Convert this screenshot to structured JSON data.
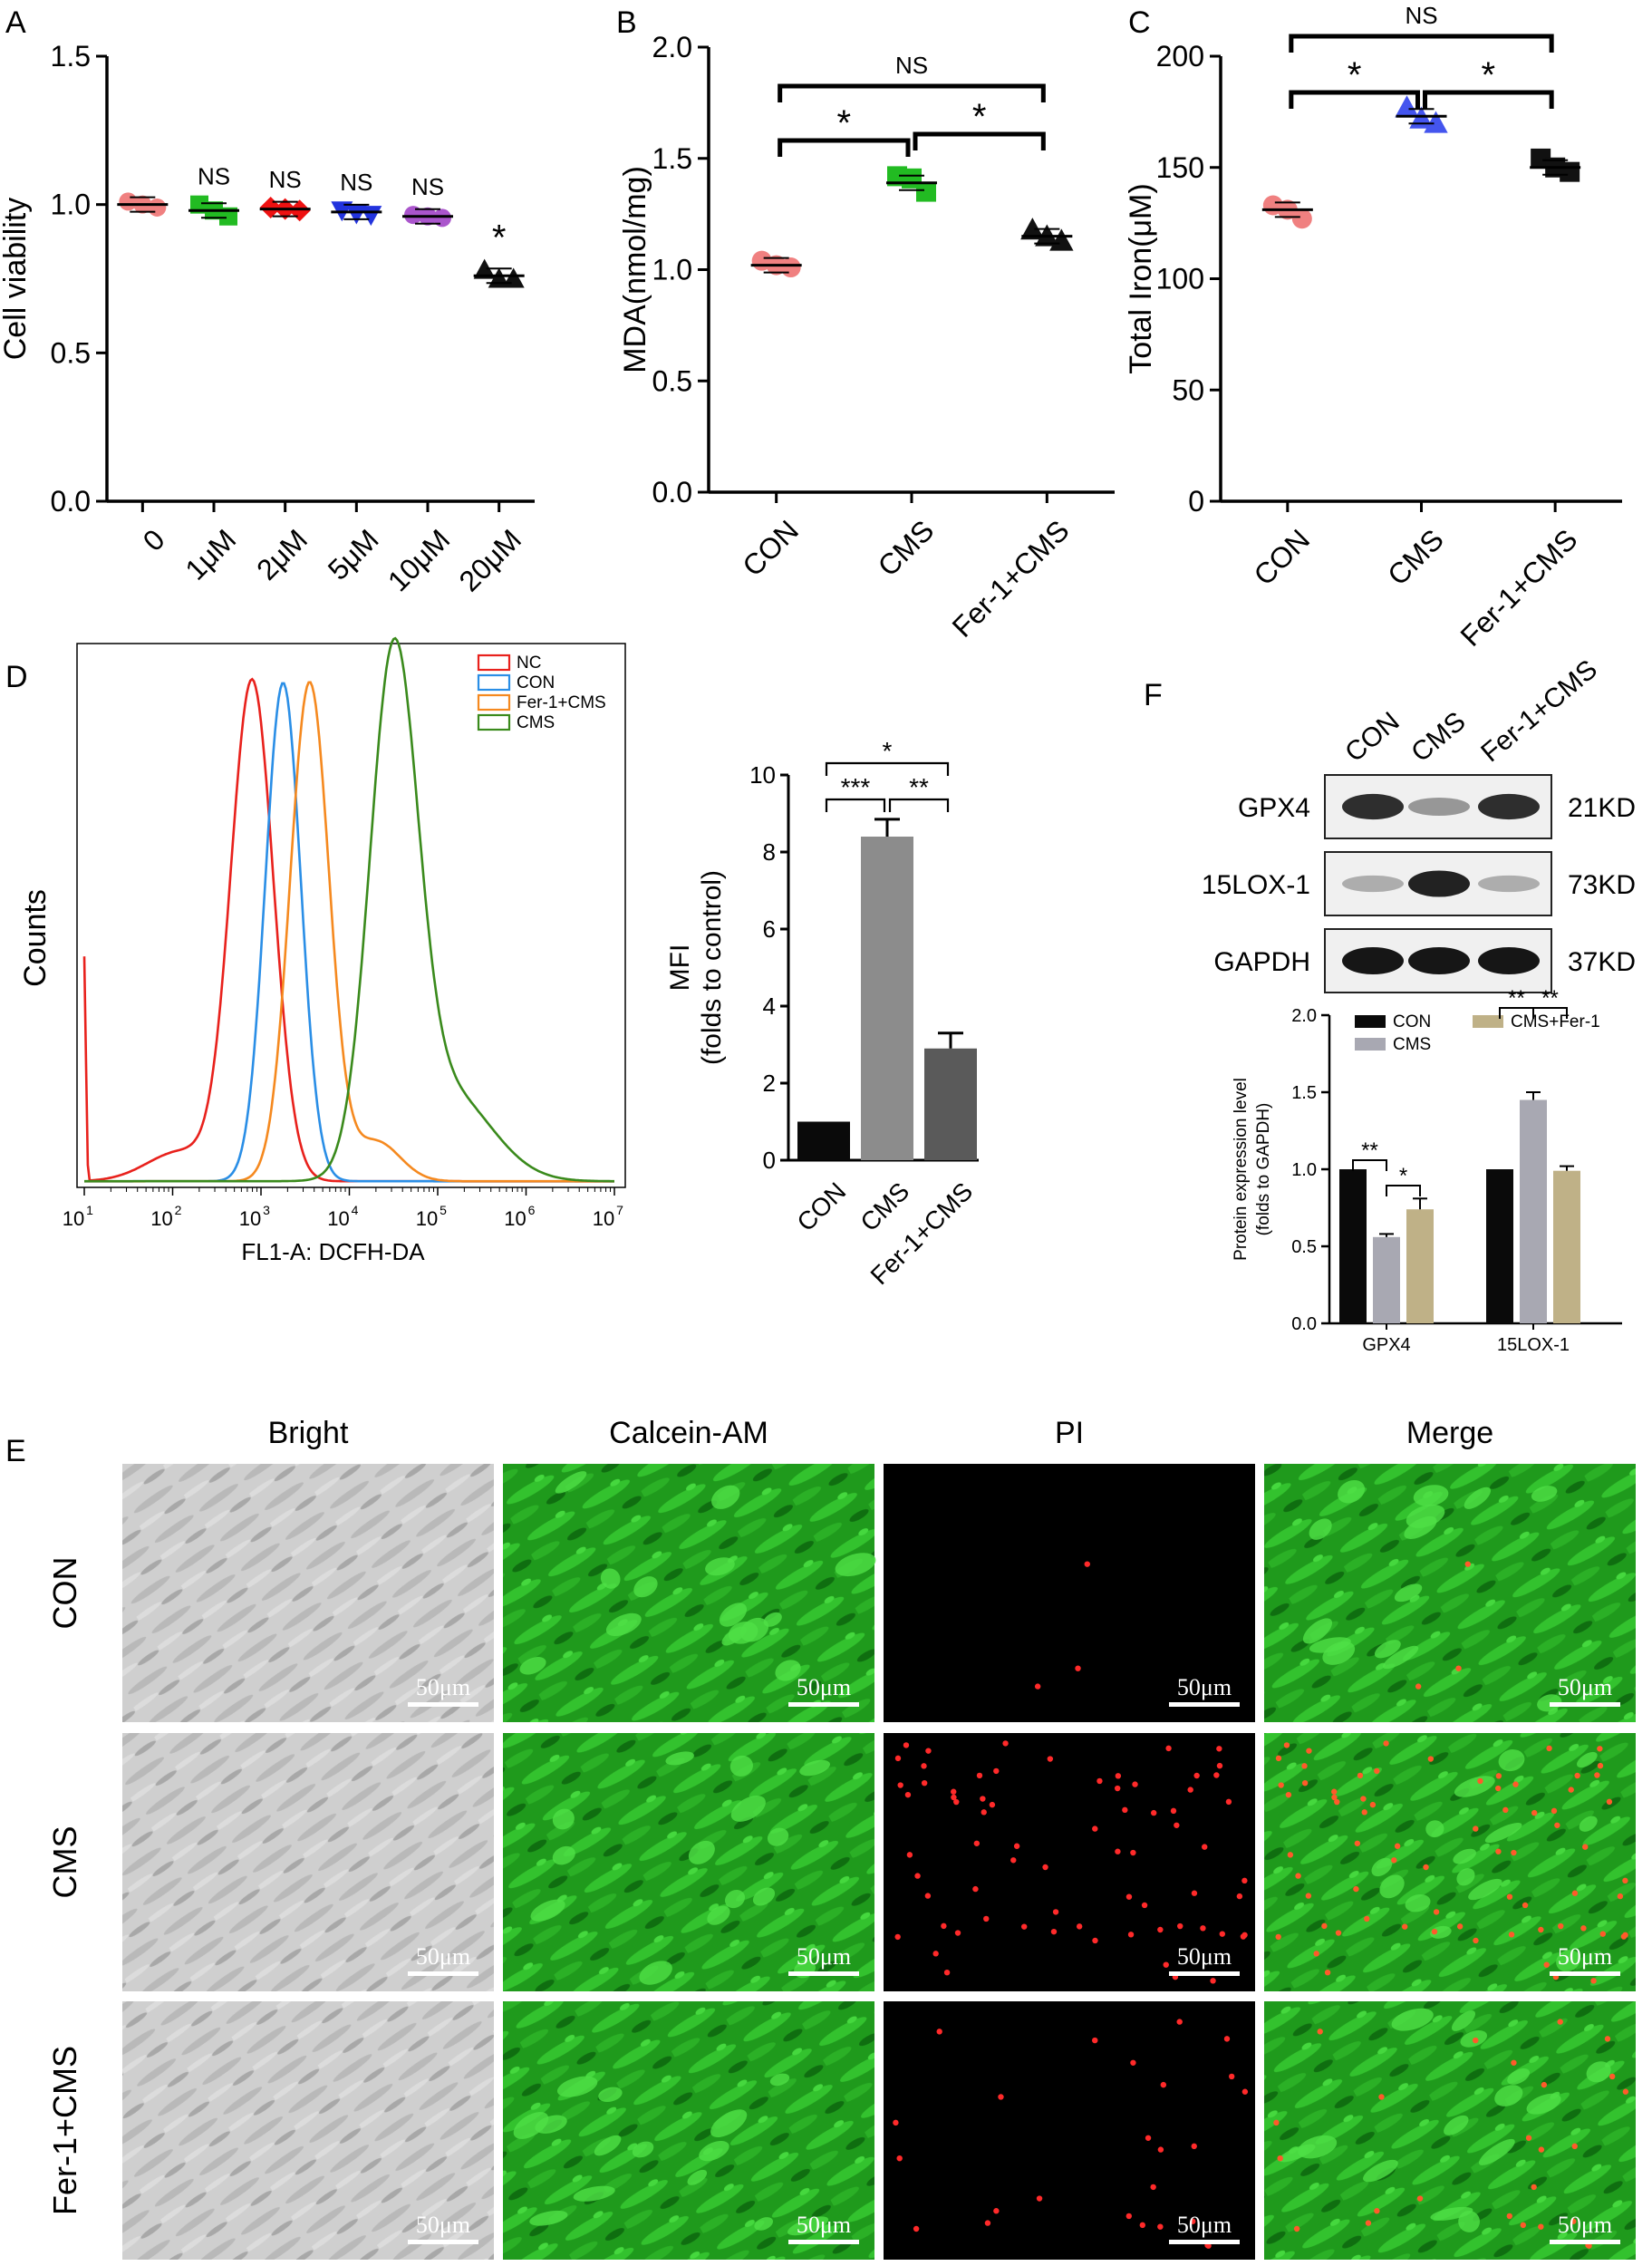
{
  "panel_letters": {
    "a": "A",
    "b": "B",
    "c": "C",
    "d": "D",
    "e": "E",
    "f": "F"
  },
  "chart_data": [
    {
      "panel": "A",
      "type": "scatter",
      "ylabel": "Cell viability",
      "ylim": [
        0,
        1.5
      ],
      "yticks": [
        "0.0",
        "0.5",
        "1.0",
        "1.5"
      ],
      "categories": [
        "0",
        "1μM",
        "2μM",
        "5μM",
        "10μM",
        "20μM"
      ],
      "means": [
        1.0,
        0.98,
        0.985,
        0.975,
        0.96,
        0.76
      ],
      "points": [
        [
          1.01,
          1.0,
          0.99
        ],
        [
          1.0,
          0.98,
          0.96
        ],
        [
          0.99,
          0.985,
          0.98
        ],
        [
          0.98,
          0.97,
          0.965
        ],
        [
          0.965,
          0.96,
          0.955
        ],
        [
          0.78,
          0.75,
          0.75
        ]
      ],
      "colors": [
        "#f08080",
        "#22bb22",
        "#ee1111",
        "#2233dd",
        "#aa55cc",
        "#111111"
      ],
      "markers": [
        "circle",
        "square",
        "diamond",
        "triangle-down",
        "circle",
        "triangle"
      ],
      "annotations": [
        "",
        "NS",
        "NS",
        "NS",
        "NS",
        "*"
      ]
    },
    {
      "panel": "B",
      "type": "scatter",
      "ylabel": "MDA(nmol/mg)",
      "ylim": [
        0,
        2.0
      ],
      "yticks": [
        "0.0",
        "0.5",
        "1.0",
        "1.5",
        "2.0"
      ],
      "categories": [
        "CON",
        "CMS",
        "Fer-1+CMS"
      ],
      "means": [
        1.02,
        1.39,
        1.15
      ],
      "points": [
        [
          1.04,
          1.02,
          1.01
        ],
        [
          1.42,
          1.41,
          1.35
        ],
        [
          1.18,
          1.15,
          1.13
        ]
      ],
      "colors": [
        "#f08080",
        "#22bb22",
        "#111111"
      ],
      "markers": [
        "circle",
        "square",
        "triangle"
      ],
      "significance": [
        {
          "from": 0,
          "to": 1,
          "label": "*"
        },
        {
          "from": 1,
          "to": 2,
          "label": "*"
        },
        {
          "from": 0,
          "to": 2,
          "label": "NS"
        }
      ]
    },
    {
      "panel": "C",
      "type": "scatter",
      "ylabel": "Total Iron(μM)",
      "ylim": [
        0,
        200
      ],
      "yticks": [
        "0",
        "50",
        "100",
        "150",
        "200"
      ],
      "categories": [
        "CON",
        "CMS",
        "Fer-1+CMS"
      ],
      "means": [
        131,
        173,
        150
      ],
      "points": [
        [
          133,
          131,
          127
        ],
        [
          177,
          172,
          170
        ],
        [
          154,
          150,
          148
        ]
      ],
      "colors": [
        "#f08080",
        "#4455ee",
        "#111111"
      ],
      "markers": [
        "circle",
        "triangle",
        "square"
      ],
      "significance": [
        {
          "from": 0,
          "to": 1,
          "label": "*"
        },
        {
          "from": 1,
          "to": 2,
          "label": "*"
        },
        {
          "from": 0,
          "to": 2,
          "label": "NS"
        }
      ]
    },
    {
      "panel": "D-histogram",
      "type": "line",
      "xlabel": "FL1-A: DCFH-DA",
      "ylabel": "Counts",
      "xscale": "log",
      "xticks": [
        "10",
        "10",
        "10",
        "10",
        "10",
        "10",
        "10"
      ],
      "xtick_exponents": [
        "1",
        "2",
        "3",
        "4",
        "5",
        "6",
        "7"
      ],
      "legend_position": "top-right",
      "series": [
        {
          "name": "NC",
          "color": "#e8211c",
          "peak_log10": 2.9,
          "width": 0.24
        },
        {
          "name": "CON",
          "color": "#2a8ee6",
          "peak_log10": 3.25,
          "width": 0.2
        },
        {
          "name": "Fer-1+CMS",
          "color": "#f5891f",
          "peak_log10": 3.55,
          "width": 0.22
        },
        {
          "name": "CMS",
          "color": "#3a8a1c",
          "peak_log10": 4.5,
          "width": 0.27
        }
      ]
    },
    {
      "panel": "D-bar",
      "type": "bar",
      "ylabel": "MFI",
      "ylabel2": "(folds to control)",
      "ylim": [
        0,
        10
      ],
      "yticks": [
        "0",
        "2",
        "4",
        "6",
        "8",
        "10"
      ],
      "categories": [
        "CON",
        "CMS",
        "Fer-1+CMS"
      ],
      "values": [
        1.0,
        8.4,
        2.9
      ],
      "errors": [
        0,
        0.45,
        0.4
      ],
      "colors": [
        "#0a0a0a",
        "#8c8c8c",
        "#5a5a5a"
      ],
      "significance": [
        {
          "from": 0,
          "to": 1,
          "label": "***"
        },
        {
          "from": 1,
          "to": 2,
          "label": "**"
        },
        {
          "from": 0,
          "to": 2,
          "label": "*"
        }
      ]
    },
    {
      "panel": "F-bar",
      "type": "bar",
      "ylabel": "Protein expression level",
      "ylabel2": "(folds to GAPDH)",
      "ylim": [
        0,
        2.0
      ],
      "yticks": [
        "0.0",
        "0.5",
        "1.0",
        "1.5",
        "2.0"
      ],
      "categories": [
        "GPX4",
        "15LOX-1"
      ],
      "legend_position": "top",
      "series": [
        {
          "name": "CON",
          "color": "#0a0a0a",
          "values": [
            1.0,
            1.0
          ],
          "errors": [
            0,
            0
          ]
        },
        {
          "name": "CMS",
          "color": "#a8a8b2",
          "values": [
            0.56,
            1.45
          ],
          "errors": [
            0.02,
            0.05
          ]
        },
        {
          "name": "CMS+Fer-1",
          "color": "#bfb187",
          "values": [
            0.74,
            0.99
          ],
          "errors": [
            0.07,
            0.03
          ]
        }
      ],
      "significance": [
        {
          "group": 0,
          "from": 0,
          "to": 1,
          "label": "**"
        },
        {
          "group": 0,
          "from": 1,
          "to": 2,
          "label": "*"
        },
        {
          "group": 1,
          "from": 0,
          "to": 1,
          "label": "**"
        },
        {
          "group": 1,
          "from": 1,
          "to": 2,
          "label": "**"
        }
      ]
    }
  ],
  "western": {
    "lanes": [
      "CON",
      "CMS",
      "Fer-1+CMS"
    ],
    "rows": [
      {
        "protein": "GPX4",
        "size": "21KD",
        "intensity": [
          0.9,
          0.45,
          0.9
        ]
      },
      {
        "protein": "15LOX-1",
        "size": "73KD",
        "intensity": [
          0.35,
          0.95,
          0.35
        ]
      },
      {
        "protein": "GAPDH",
        "size": "37KD",
        "intensity": [
          1.0,
          1.0,
          1.0
        ]
      }
    ]
  },
  "microscopy": {
    "columns": [
      "Bright",
      "Calcein-AM",
      "PI",
      "Merge"
    ],
    "rows": [
      "CON",
      "CMS",
      "Fer-1+CMS"
    ],
    "scale_bar": "50μm",
    "pi_dot_counts": [
      3,
      70,
      25
    ]
  }
}
